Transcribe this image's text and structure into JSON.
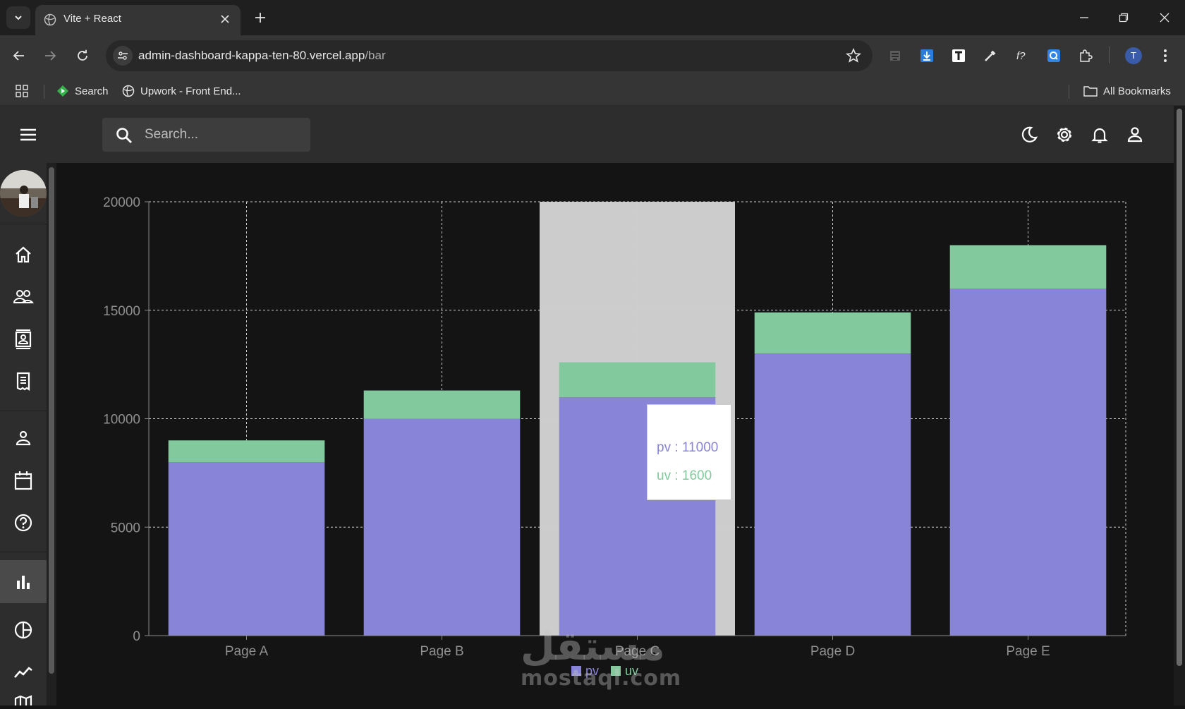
{
  "browser": {
    "tab_title": "Vite + React",
    "url_host": "admin-dashboard-kappa-ten-80.vercel.app",
    "url_path": "/bar",
    "profile_initial": "T",
    "bookmarks": [
      {
        "label": "Search",
        "icon": "search-engine-icon"
      },
      {
        "label": "Upwork - Front End...",
        "icon": "globe-icon"
      }
    ],
    "all_bookmarks_label": "All Bookmarks"
  },
  "app": {
    "search_placeholder": "Search...",
    "top_icons": [
      "dark-mode-icon",
      "settings-icon",
      "notifications-icon",
      "account-icon"
    ],
    "sidebar_icons": [
      "home-icon",
      "team-icon",
      "contacts-icon",
      "invoices-icon",
      "profile-icon",
      "calendar-icon",
      "faq-icon",
      "bar-chart-icon",
      "pie-chart-icon",
      "line-chart-icon",
      "geography-icon"
    ],
    "active_sidebar": "bar-chart-icon"
  },
  "colors": {
    "pv": "#8884d8",
    "uv": "#82ca9d",
    "highlight": "#cccccc"
  },
  "chart_data": {
    "type": "bar",
    "stacked": true,
    "categories": [
      "Page A",
      "Page B",
      "Page C",
      "Page D",
      "Page E"
    ],
    "series": [
      {
        "name": "pv",
        "values": [
          8000,
          10000,
          11000,
          13000,
          16000
        ]
      },
      {
        "name": "uv",
        "values": [
          1000,
          1300,
          1600,
          1900,
          2000
        ]
      }
    ],
    "ylim": [
      0,
      20000
    ],
    "yticks": [
      "20000",
      "15000",
      "10000",
      "5000",
      "0"
    ],
    "grid": true,
    "legend": "bottom",
    "highlighted_category": "Page C",
    "tooltip": {
      "pv_label": "pv : 11000",
      "uv_label": "uv : 1600"
    }
  },
  "watermark": {
    "arabic": "مستقل",
    "latin": "mostaql.com"
  }
}
